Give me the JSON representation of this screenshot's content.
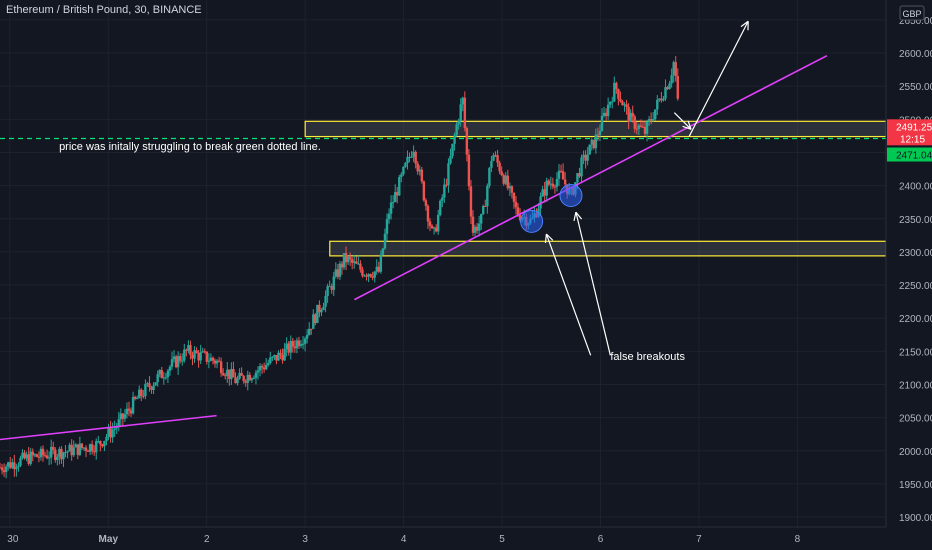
{
  "header": {
    "symbol_title": "Ethereum / British Pound, 30, BINANCE",
    "currency": "GBP"
  },
  "annotations": {
    "struggle_note": "price was initally struggling to break green dotted line.",
    "false_breakouts": "false breakouts"
  },
  "price_badges": {
    "last_price": "2491.25",
    "countdown": "12:15",
    "level_price": "2471.04"
  },
  "colors": {
    "background": "#131722",
    "up": "#26a69a",
    "down": "#ef5350",
    "trendline": "#e040fb",
    "zone": "#ffeb3b",
    "dotted_level": "#00e676",
    "axis_text": "#b2b5be",
    "ellipse": "#2962ff"
  },
  "chart_data": {
    "type": "candlestick",
    "title": "Ethereum / British Pound, 30, BINANCE",
    "currency": "GBP",
    "x_ticks": [
      "30",
      "May",
      "2",
      "3",
      "4",
      "5",
      "6",
      "7",
      "8"
    ],
    "y_ticks": [
      1900,
      1950,
      2000,
      2050,
      2100,
      2150,
      2200,
      2250,
      2300,
      2350,
      2400,
      2450,
      2500,
      2550,
      2600,
      2650
    ],
    "ylim": [
      1885,
      2680
    ],
    "xlim": [
      -0.1,
      8.9
    ],
    "grid": true,
    "anchors": [
      [
        -0.1,
        1975
      ],
      [
        0.2,
        1990
      ],
      [
        0.6,
        2000
      ],
      [
        0.9,
        2010
      ],
      [
        1.1,
        2040
      ],
      [
        1.3,
        2080
      ],
      [
        1.5,
        2110
      ],
      [
        1.8,
        2150
      ],
      [
        2.1,
        2135
      ],
      [
        2.3,
        2105
      ],
      [
        2.5,
        2120
      ],
      [
        2.8,
        2150
      ],
      [
        3.0,
        2175
      ],
      [
        3.2,
        2230
      ],
      [
        3.4,
        2290
      ],
      [
        3.6,
        2270
      ],
      [
        3.75,
        2270
      ],
      [
        3.85,
        2360
      ],
      [
        4.0,
        2420
      ],
      [
        4.1,
        2460
      ],
      [
        4.2,
        2390
      ],
      [
        4.3,
        2320
      ],
      [
        4.45,
        2420
      ],
      [
        4.55,
        2500
      ],
      [
        4.6,
        2530
      ],
      [
        4.7,
        2330
      ],
      [
        4.8,
        2350
      ],
      [
        4.9,
        2450
      ],
      [
        5.0,
        2420
      ],
      [
        5.15,
        2360
      ],
      [
        5.3,
        2345
      ],
      [
        5.45,
        2400
      ],
      [
        5.6,
        2415
      ],
      [
        5.7,
        2385
      ],
      [
        5.8,
        2430
      ],
      [
        5.95,
        2470
      ],
      [
        6.05,
        2510
      ],
      [
        6.15,
        2550
      ],
      [
        6.3,
        2500
      ],
      [
        6.45,
        2480
      ],
      [
        6.6,
        2530
      ],
      [
        6.7,
        2560
      ],
      [
        6.75,
        2590
      ],
      [
        6.8,
        2495
      ]
    ],
    "horizontal_levels": [
      {
        "style": "dotted",
        "color": "green",
        "price": 2471.04
      }
    ],
    "zones": [
      {
        "from_x": 3.0,
        "to_x": 8.9,
        "bottom": 2474,
        "top": 2497
      },
      {
        "from_x": 3.25,
        "to_x": 8.9,
        "bottom": 2294,
        "top": 2316
      }
    ],
    "trendlines": [
      {
        "from": [
          -0.1,
          2017
        ],
        "to": [
          2.1,
          2053
        ]
      },
      {
        "from": [
          3.5,
          2228
        ],
        "to": [
          8.3,
          2596
        ]
      }
    ],
    "markers": [
      {
        "type": "ellipse",
        "x": 5.3,
        "y": 2346
      },
      {
        "type": "ellipse",
        "x": 5.7,
        "y": 2385
      }
    ],
    "arrows": [
      {
        "from": [
          6.9,
          2474
        ],
        "to": [
          7.5,
          2648
        ]
      },
      {
        "from": [
          6.75,
          2510
        ],
        "to": [
          6.92,
          2485
        ]
      },
      {
        "from": [
          5.9,
          2144
        ],
        "to": [
          5.45,
          2327
        ]
      },
      {
        "from": [
          6.1,
          2144
        ],
        "to": [
          5.75,
          2360
        ]
      }
    ],
    "labels": [
      {
        "key": "struggle_note",
        "x": 0.5,
        "y": 2457
      },
      {
        "key": "false_breakouts",
        "x": 6.1,
        "y": 2140
      }
    ]
  }
}
